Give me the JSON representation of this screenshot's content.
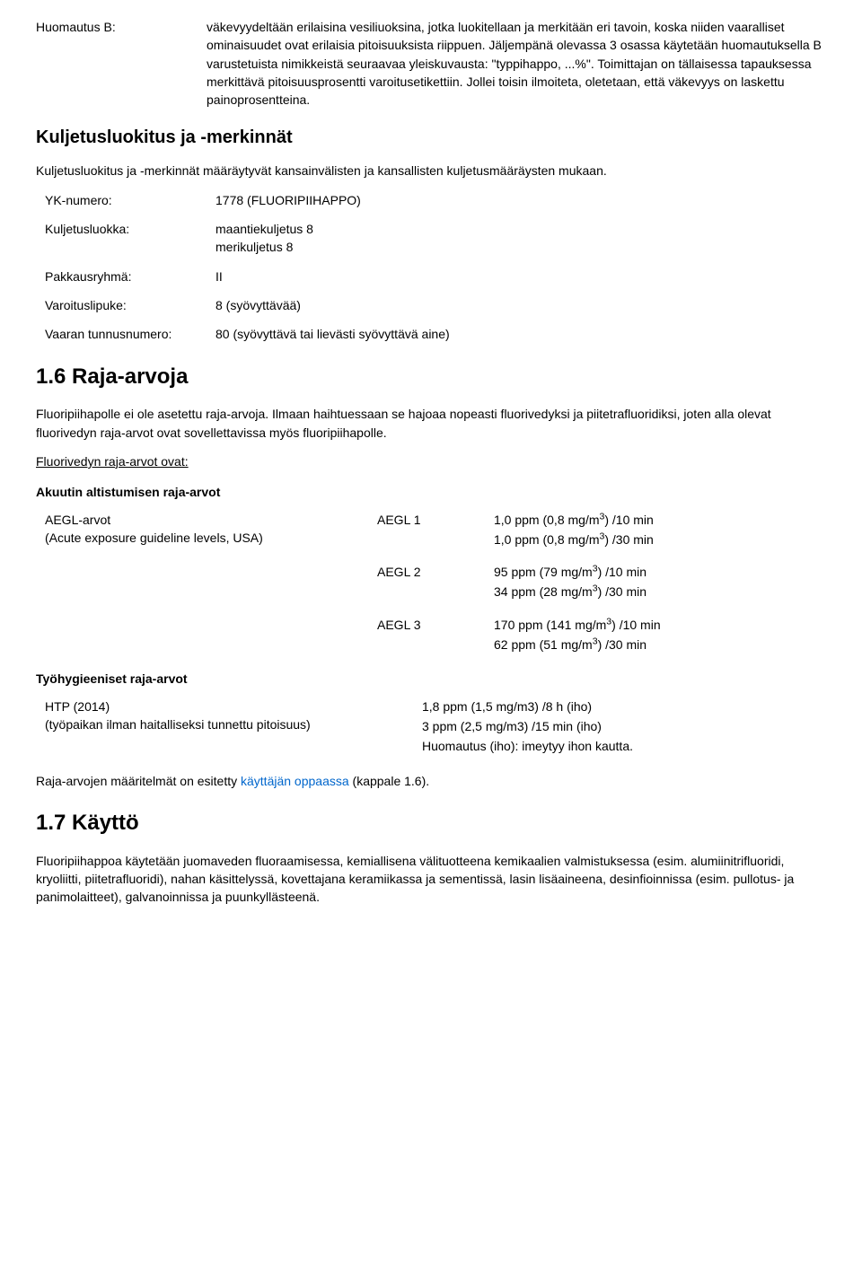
{
  "huomautus": {
    "label": "Huomautus B:",
    "text": "väkevyydeltään erilaisina vesiliuoksina, jotka luokitellaan ja merkitään eri tavoin, koska niiden vaaralliset ominaisuudet ovat erilaisia pitoisuuksista riippuen. Jäljempänä olevassa 3 osassa käytetään huomautuksella B varustetuista nimikkeistä seuraavaa yleiskuvausta: \"typpihappo, ...%\". Toimittajan on tällaisessa tapauksessa merkittävä pitoisuusprosentti varoitusetikettiin. Jollei toisin ilmoiteta, oletetaan, että väkevyys on laskettu painoprosentteina."
  },
  "kuljetus": {
    "heading": "Kuljetusluokitus ja -merkinnät",
    "intro": "Kuljetusluokitus ja -merkinnät määräytyvät kansainvälisten ja kansallisten kuljetusmääräysten mukaan.",
    "rows": {
      "yk": {
        "label": "YK-numero:",
        "value": "1778 (FLUORIPIIHAPPO)"
      },
      "luokka": {
        "label": "Kuljetusluokka:",
        "value1": "maantiekuljetus 8",
        "value2": "merikuljetus 8"
      },
      "pakkaus": {
        "label": "Pakkausryhmä:",
        "value": "II"
      },
      "varoitus": {
        "label": "Varoituslipuke:",
        "value": "8 (syövyttävää)"
      },
      "vaara": {
        "label": "Vaaran tunnusnumero:",
        "value": "80 (syövyttävä tai lievästi syövyttävä aine)"
      }
    }
  },
  "raja": {
    "heading": "1.6 Raja-arvoja",
    "intro": "Fluoripiihapolle ei ole asetettu raja-arvoja. Ilmaan haihtuessaan se hajoaa nopeasti fluorivedyksi ja piitetrafluoridiksi, joten alla olevat fluorivedyn raja-arvot ovat sovellettavissa myös fluoripiihapolle.",
    "sub_underline": "Fluorivedyn raja-arvot ovat:",
    "akuutti_heading": "Akuutin altistumisen raja-arvot",
    "aegl": {
      "label1": "AEGL-arvot",
      "label2": "(Acute exposure guideline levels, USA)",
      "levels": [
        {
          "name": "AEGL 1",
          "v1": "1,0 ppm (0,8 mg/m",
          "v1b": ") /10 min",
          "v2": "1,0 ppm (0,8 mg/m",
          "v2b": ") /30 min"
        },
        {
          "name": "AEGL 2",
          "v1": "95 ppm (79 mg/m",
          "v1b": ") /10 min",
          "v2": "34 ppm (28 mg/m",
          "v2b": ") /30 min"
        },
        {
          "name": "AEGL 3",
          "v1": "170 ppm (141 mg/m",
          "v1b": ") /10 min",
          "v2": "62 ppm (51 mg/m",
          "v2b": ") /30 min"
        }
      ]
    },
    "tyo_heading": "Työhygieeniset raja-arvot",
    "htp": {
      "left1": "HTP (2014)",
      "left2": "(työpaikan ilman haitalliseksi tunnettu pitoisuus)",
      "r1": "1,8 ppm (1,5 mg/m3) /8 h (iho)",
      "r2": "3 ppm (2,5 mg/m3) /15 min (iho)",
      "r3": "Huomautus (iho): imeytyy ihon kautta."
    },
    "footer_pre": "Raja-arvojen määritelmät on esitetty ",
    "footer_link": "käyttäjän oppaassa",
    "footer_post": " (kappale 1.6)."
  },
  "kaytto": {
    "heading": "1.7 Käyttö",
    "text": "Fluoripiihappoa käytetään juomaveden fluoraamisessa, kemiallisena välituotteena kemikaalien valmistuksessa (esim. alumiinitrifluoridi, kryoliitti, piitetrafluoridi), nahan käsittelyssä, kovettajana keramiikassa ja sementissä, lasin lisäaineena, desinfioinnissa (esim. pullotus- ja panimolaitteet), galvanoinnissa ja puunkyllästeenä."
  }
}
